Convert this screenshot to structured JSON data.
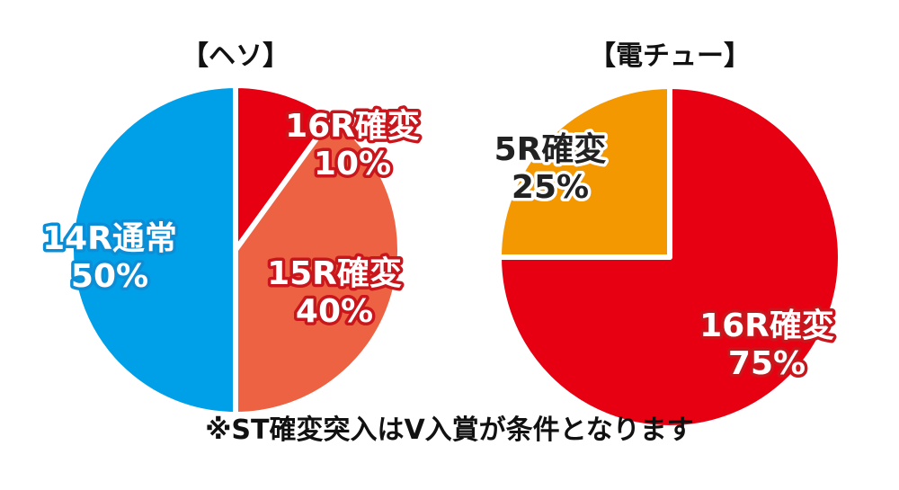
{
  "chart_data": [
    {
      "type": "pie",
      "title": "【ヘソ】",
      "slices": [
        {
          "label": "16R確変",
          "value": 10,
          "value_label": "10%",
          "color": "#e60012"
        },
        {
          "label": "15R確変",
          "value": 40,
          "value_label": "40%",
          "color": "#ec6242"
        },
        {
          "label": "14R通常",
          "value": 50,
          "value_label": "50%",
          "color": "#00a0e9"
        }
      ]
    },
    {
      "type": "pie",
      "title": "【電チュー】",
      "slices": [
        {
          "label": "16R確変",
          "value": 75,
          "value_label": "75%",
          "color": "#e60012"
        },
        {
          "label": "5R確変",
          "value": 25,
          "value_label": "25%",
          "color": "#f39800"
        }
      ]
    }
  ],
  "footnote": "※ST確変突入はV入賞が条件となります"
}
